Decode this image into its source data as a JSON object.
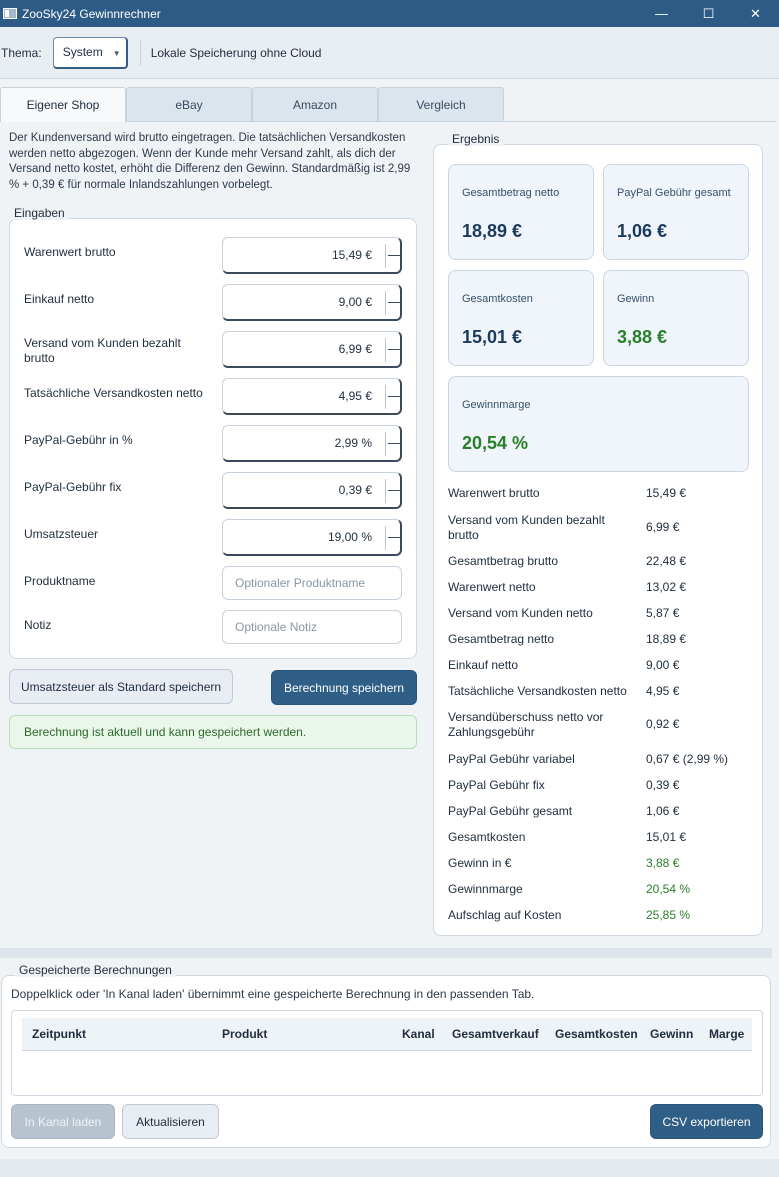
{
  "window": {
    "title": "ZooSky24 Gewinnrechner",
    "controls": {
      "minimize": "—",
      "maximize": "☐",
      "close": "✕"
    }
  },
  "toolbar": {
    "theme_label": "Thema:",
    "theme_value": "System",
    "storage_label": "Lokale Speicherung ohne Cloud"
  },
  "tabs": [
    "Eigener Shop",
    "eBay",
    "Amazon",
    "Vergleich"
  ],
  "active_tab": "Eigener Shop",
  "intro": "Der Kundenversand wird brutto eingetragen. Die tatsächlichen Versandkosten werden netto abgezogen. Wenn der Kunde mehr Versand zahlt, als dich der Versand netto kostet, erhöht die Differenz den Gewinn. Standardmäßig ist 2,99 % + 0,39 € für normale Inlandszahlungen vorbelegt.",
  "inputs": {
    "title": "Eingaben",
    "fields": [
      {
        "label": "Warenwert brutto",
        "value": "15,49 €"
      },
      {
        "label": "Einkauf netto",
        "value": "9,00 €"
      },
      {
        "label": "Versand vom Kunden bezahlt brutto",
        "value": "6,99 €"
      },
      {
        "label": "Tatsächliche Versandkosten netto",
        "value": "4,95 €"
      },
      {
        "label": "PayPal-Gebühr in %",
        "value": "2,99 %"
      },
      {
        "label": "PayPal-Gebühr fix",
        "value": "0,39 €"
      },
      {
        "label": "Umsatzsteuer",
        "value": "19,00 %"
      }
    ],
    "product_label": "Produktname",
    "product_placeholder": "Optionaler Produktname",
    "note_label": "Notiz",
    "note_placeholder": "Optionale Notiz"
  },
  "buttons": {
    "save_vat": "Umsatzsteuer als Standard speichern",
    "save_calc": "Berechnung speichern"
  },
  "status_message": "Berechnung ist aktuell und kann gespeichert werden.",
  "result": {
    "title": "Ergebnis",
    "cards": [
      {
        "label": "Gesamtbetrag netto",
        "value": "18,89 €"
      },
      {
        "label": "PayPal Gebühr gesamt",
        "value": "1,06 €"
      },
      {
        "label": "Gesamtkosten",
        "value": "15,01 €"
      },
      {
        "label": "Gewinn",
        "value": "3,88 €"
      },
      {
        "label": "Gewinnmarge",
        "value": "20,54 %"
      }
    ],
    "rows": [
      {
        "label": "Warenwert brutto",
        "value": "15,49 €"
      },
      {
        "label": "Versand vom Kunden bezahlt brutto",
        "value": "6,99 €"
      },
      {
        "label": "Gesamtbetrag brutto",
        "value": "22,48 €"
      },
      {
        "label": "Warenwert netto",
        "value": "13,02 €"
      },
      {
        "label": "Versand vom Kunden netto",
        "value": "5,87 €"
      },
      {
        "label": "Gesamtbetrag netto",
        "value": "18,89 €"
      },
      {
        "label": "Einkauf netto",
        "value": "9,00 €"
      },
      {
        "label": "Tatsächliche Versandkosten netto",
        "value": "4,95 €"
      },
      {
        "label": "Versandüberschuss netto vor Zahlungsgebühr",
        "value": "0,92 €"
      },
      {
        "label": "PayPal Gebühr variabel",
        "value": "0,67 € (2,99 %)"
      },
      {
        "label": "PayPal Gebühr fix",
        "value": "0,39 €"
      },
      {
        "label": "PayPal Gebühr gesamt",
        "value": "1,06 €"
      },
      {
        "label": "Gesamtkosten",
        "value": "15,01 €"
      },
      {
        "label": "Gewinn in €",
        "value": "3,88 €"
      },
      {
        "label": "Gewinnmarge",
        "value": "20,54 %"
      },
      {
        "label": "Aufschlag auf Kosten",
        "value": "25,85 %"
      }
    ],
    "positive_color": "#2a7f2a"
  },
  "saved": {
    "title": "Gespeicherte Berechnungen",
    "hint": "Doppelklick oder 'In Kanal laden' übernimmt eine gespeicherte Berechnung in den passenden Tab.",
    "columns": [
      "Zeitpunkt",
      "Produkt",
      "Kanal",
      "Gesamtverkauf",
      "Gesamtkosten",
      "Gewinn",
      "Marge"
    ],
    "buttons": {
      "load": "In Kanal laden",
      "refresh": "Aktualisieren",
      "export": "CSV exportieren"
    }
  },
  "colors": {
    "titlebar": "#2e5b86",
    "primary_button": "#2f5e86",
    "success_bg": "#eaf6ea"
  }
}
